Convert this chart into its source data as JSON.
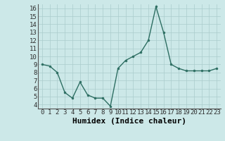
{
  "x": [
    0,
    1,
    2,
    3,
    4,
    5,
    6,
    7,
    8,
    9,
    10,
    11,
    12,
    13,
    14,
    15,
    16,
    17,
    18,
    19,
    20,
    21,
    22,
    23
  ],
  "y": [
    9.0,
    8.8,
    8.0,
    5.5,
    4.8,
    6.8,
    5.2,
    4.8,
    4.8,
    3.8,
    8.5,
    9.5,
    10.0,
    10.5,
    12.0,
    16.2,
    13.0,
    9.0,
    8.5,
    8.2,
    8.2,
    8.2,
    8.2,
    8.5
  ],
  "xlabel": "Humidex (Indice chaleur)",
  "ylim": [
    3.5,
    16.5
  ],
  "yticks": [
    4,
    5,
    6,
    7,
    8,
    9,
    10,
    11,
    12,
    13,
    14,
    15,
    16
  ],
  "xtick_labels": [
    "0",
    "1",
    "2",
    "3",
    "4",
    "5",
    "6",
    "7",
    "8",
    "9",
    "10",
    "11",
    "12",
    "13",
    "14",
    "15",
    "16",
    "17",
    "18",
    "19",
    "20",
    "21",
    "22",
    "23"
  ],
  "line_color": "#2d6e62",
  "marker_color": "#2d6e62",
  "bg_color": "#cce8e8",
  "grid_color": "#aacccc",
  "xlabel_fontsize": 8,
  "tick_fontsize": 6.5
}
